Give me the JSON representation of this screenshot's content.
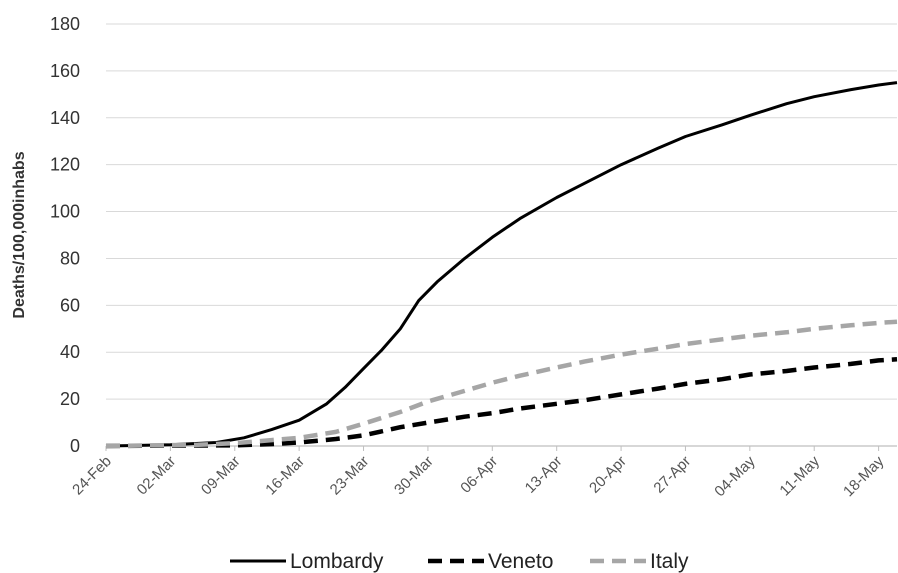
{
  "chart_data": {
    "type": "line",
    "title": "",
    "xlabel": "",
    "ylabel": "Deaths/100,000inhabs",
    "ylim": [
      0,
      180
    ],
    "yticks": [
      0,
      20,
      40,
      60,
      80,
      100,
      120,
      140,
      160,
      180
    ],
    "xticks": [
      "24-Feb",
      "02-Mar",
      "09-Mar",
      "16-Mar",
      "23-Mar",
      "30-Mar",
      "06-Apr",
      "13-Apr",
      "20-Apr",
      "27-Apr",
      "04-May",
      "11-May",
      "18-May"
    ],
    "x_start": "24-Feb",
    "x_end": "20-May",
    "grid": true,
    "legend_position": "bottom",
    "series": [
      {
        "name": "Lombardy",
        "style": "solid",
        "color": "#000000",
        "points": [
          [
            "24-Feb",
            0
          ],
          [
            "02-Mar",
            0.5
          ],
          [
            "07-Mar",
            1.5
          ],
          [
            "10-Mar",
            3.5
          ],
          [
            "13-Mar",
            7
          ],
          [
            "16-Mar",
            11
          ],
          [
            "19-Mar",
            18
          ],
          [
            "21-Mar",
            25
          ],
          [
            "23-Mar",
            33
          ],
          [
            "25-Mar",
            41
          ],
          [
            "27-Mar",
            50
          ],
          [
            "29-Mar",
            62
          ],
          [
            "31-Mar",
            70
          ],
          [
            "03-Apr",
            80
          ],
          [
            "06-Apr",
            89
          ],
          [
            "09-Apr",
            97
          ],
          [
            "13-Apr",
            106
          ],
          [
            "16-Apr",
            112
          ],
          [
            "20-Apr",
            120
          ],
          [
            "24-Apr",
            127
          ],
          [
            "27-Apr",
            132
          ],
          [
            "01-May",
            137
          ],
          [
            "04-May",
            141
          ],
          [
            "08-May",
            146
          ],
          [
            "11-May",
            149
          ],
          [
            "15-May",
            152
          ],
          [
            "18-May",
            154
          ],
          [
            "20-May",
            155
          ]
        ]
      },
      {
        "name": "Veneto",
        "style": "dashed",
        "color": "#000000",
        "points": [
          [
            "24-Feb",
            0
          ],
          [
            "09-Mar",
            0.3
          ],
          [
            "13-Mar",
            0.8
          ],
          [
            "16-Mar",
            1.5
          ],
          [
            "20-Mar",
            3
          ],
          [
            "23-Mar",
            4.5
          ],
          [
            "27-Mar",
            8
          ],
          [
            "30-Mar",
            10
          ],
          [
            "03-Apr",
            12.5
          ],
          [
            "06-Apr",
            14
          ],
          [
            "09-Apr",
            16
          ],
          [
            "13-Apr",
            18
          ],
          [
            "16-Apr",
            19.5
          ],
          [
            "20-Apr",
            22
          ],
          [
            "24-Apr",
            24.5
          ],
          [
            "27-Apr",
            26.5
          ],
          [
            "01-May",
            28.5
          ],
          [
            "04-May",
            30.5
          ],
          [
            "08-May",
            32
          ],
          [
            "11-May",
            33.5
          ],
          [
            "15-May",
            35
          ],
          [
            "18-May",
            36.5
          ],
          [
            "20-May",
            37
          ]
        ]
      },
      {
        "name": "Italy",
        "style": "dashed",
        "color": "#a6a6a6",
        "points": [
          [
            "24-Feb",
            0
          ],
          [
            "05-Mar",
            0.5
          ],
          [
            "09-Mar",
            1.2
          ],
          [
            "13-Mar",
            2.5
          ],
          [
            "16-Mar",
            3.5
          ],
          [
            "20-Mar",
            6
          ],
          [
            "23-Mar",
            9.5
          ],
          [
            "27-Mar",
            14.5
          ],
          [
            "30-Mar",
            19
          ],
          [
            "03-Apr",
            23.5
          ],
          [
            "06-Apr",
            27
          ],
          [
            "09-Apr",
            30
          ],
          [
            "13-Apr",
            33.5
          ],
          [
            "16-Apr",
            36
          ],
          [
            "20-Apr",
            39
          ],
          [
            "24-Apr",
            41.5
          ],
          [
            "27-Apr",
            43.5
          ],
          [
            "01-May",
            45.5
          ],
          [
            "04-May",
            47
          ],
          [
            "08-May",
            48.5
          ],
          [
            "11-May",
            50
          ],
          [
            "15-May",
            51.5
          ],
          [
            "18-May",
            52.5
          ],
          [
            "20-May",
            53
          ]
        ]
      }
    ]
  }
}
